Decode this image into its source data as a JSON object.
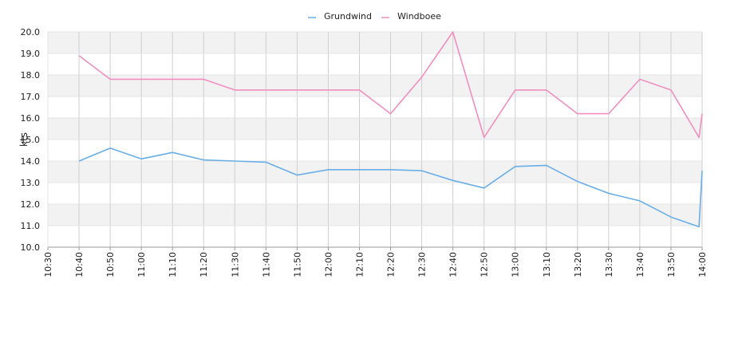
{
  "chart_data": {
    "type": "line",
    "title": "",
    "xlabel": "",
    "ylabel": "kts",
    "x_ticks": [
      "10:30",
      "10:40",
      "10:50",
      "11:00",
      "11:10",
      "11:20",
      "11:30",
      "11:40",
      "11:50",
      "12:00",
      "12:10",
      "12:20",
      "12:30",
      "12:40",
      "12:50",
      "13:00",
      "13:10",
      "13:20",
      "13:30",
      "13:40",
      "13:50",
      "14:00"
    ],
    "y_ticks": [
      "10.0",
      "11.0",
      "12.0",
      "13.0",
      "14.0",
      "15.0",
      "16.0",
      "17.0",
      "18.0",
      "19.0",
      "20.0"
    ],
    "xlim": [
      "10:30",
      "14:00"
    ],
    "ylim": [
      10,
      20
    ],
    "grid": true,
    "legend_position": "top-center",
    "series": [
      {
        "name": "Grundwind",
        "color": "#6aaee8",
        "x": [
          "10:40",
          "10:50",
          "11:00",
          "11:10",
          "11:20",
          "11:30",
          "11:40",
          "11:50",
          "12:00",
          "12:10",
          "12:20",
          "12:30",
          "12:40",
          "12:50",
          "13:00",
          "13:10",
          "13:20",
          "13:30",
          "13:40",
          "13:50",
          "13:59",
          "14:00"
        ],
        "values": [
          14.0,
          14.6,
          14.1,
          14.4,
          14.05,
          14.0,
          13.95,
          13.35,
          13.6,
          13.6,
          13.6,
          13.55,
          13.1,
          12.75,
          13.75,
          13.8,
          13.05,
          12.5,
          12.15,
          11.4,
          10.95,
          13.55
        ]
      },
      {
        "name": "Windboee",
        "color": "#f08fc0",
        "x": [
          "10:40",
          "10:50",
          "11:00",
          "11:10",
          "11:20",
          "11:30",
          "11:40",
          "11:50",
          "12:00",
          "12:10",
          "12:20",
          "12:30",
          "12:40",
          "12:50",
          "13:00",
          "13:10",
          "13:20",
          "13:30",
          "13:40",
          "13:50",
          "13:59",
          "14:00"
        ],
        "values": [
          18.9,
          17.8,
          17.8,
          17.8,
          17.8,
          17.3,
          17.3,
          17.3,
          17.3,
          17.3,
          16.2,
          17.9,
          20.0,
          15.1,
          17.3,
          17.3,
          16.2,
          16.2,
          17.8,
          17.3,
          15.1,
          16.2
        ]
      }
    ]
  }
}
